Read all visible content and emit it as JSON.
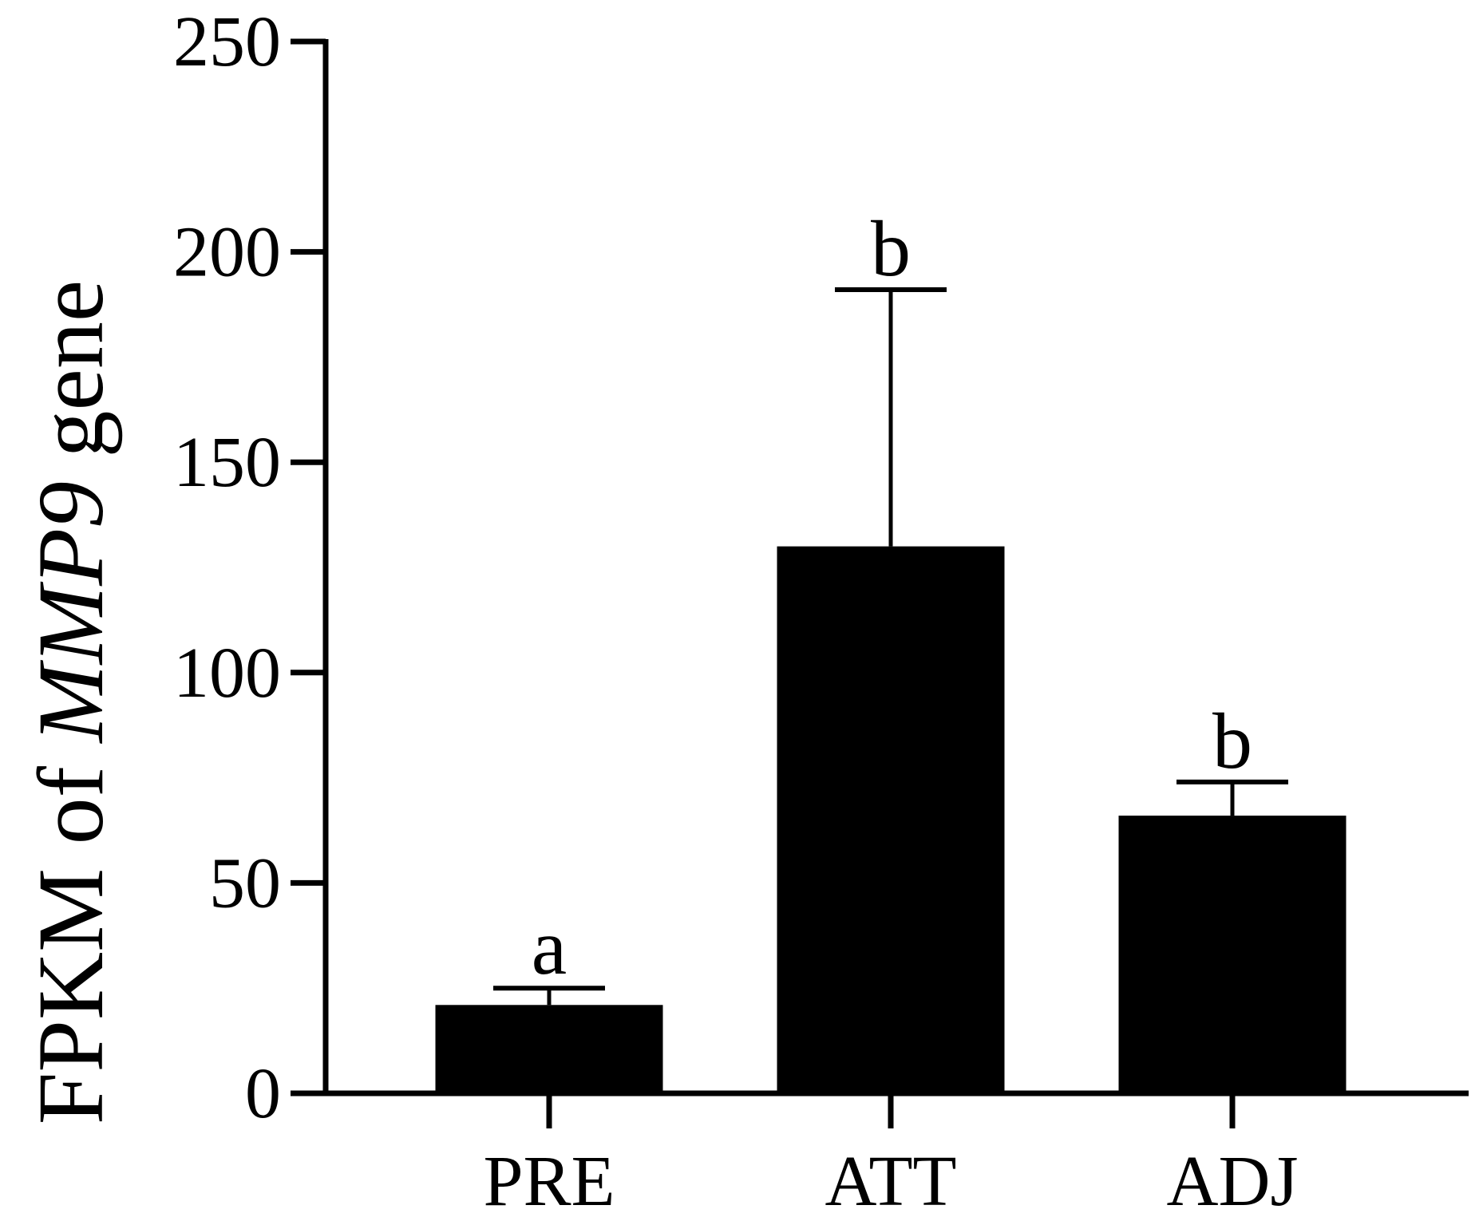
{
  "chart_data": {
    "type": "bar",
    "title": "",
    "xlabel": "",
    "ylabel": {
      "prefix": "FPKM of ",
      "gene": "MMP9",
      "suffix": " gene"
    },
    "ylim": [
      0,
      250
    ],
    "yticks": [
      "0",
      "50",
      "100",
      "150",
      "200",
      "250"
    ],
    "categories": [
      "PRE",
      "ATT",
      "ADJ"
    ],
    "values": [
      21,
      130,
      66
    ],
    "error_upper": [
      25,
      191,
      74
    ],
    "significance": [
      "a",
      "b",
      "b"
    ],
    "grid": false,
    "legend": "none",
    "colors": {
      "bar": "#000000",
      "axis": "#000000",
      "background": "#ffffff"
    }
  }
}
